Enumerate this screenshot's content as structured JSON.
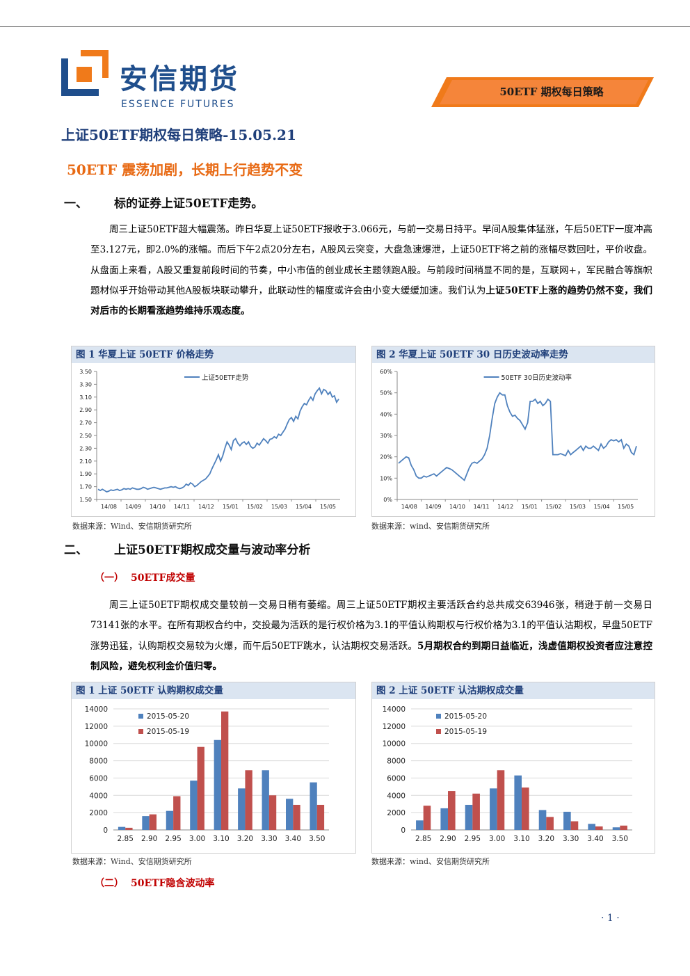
{
  "header": {
    "logo_cn": "安信期货",
    "logo_en": "ESSENCE FUTURES",
    "banner": "50ETF 期权每日策略",
    "colors": {
      "brand_blue": "#1f4e8c",
      "accent_orange": "#f07a1a",
      "headline_orange": "#e86a14",
      "subsection_red": "#c00000"
    }
  },
  "doc_title": "上证50ETF期权每日策略-15.05.21",
  "headline": "50ETF 震荡加剧，长期上行趋势不变",
  "section1": {
    "num": "一、",
    "title": "标的证券上证50ETF走势。"
  },
  "para1": {
    "text": "周三上证50ETF超大幅震荡。昨日华夏上证50ETF报收于3.066元，与前一交易日持平。早间A股集体猛涨，午后50ETF一度冲高至3.127元，即2.0%的涨幅。而后下午2点20分左右，A股风云突变，大盘急速爆泄，上证50ETF将之前的涨幅尽数回吐，平价收盘。从盘面上来看，A股又重复前段时间的节奏，中小市值的创业成长主题领跑A股。与前段时间稍显不同的是，互联网+，军民融合等旗帜题材似乎开始带动其他A股板块联动攀升，此联动性的幅度或许会由小变大缓缓加速。我们认为",
    "bold": "上证50ETF上涨的趋势仍然不变，我们对后市的长期看涨趋势维持乐观态度。"
  },
  "fig1": {
    "title": "图 1 华夏上证 50ETF 价格走势",
    "source": "数据来源：Wind、安信期货研究所"
  },
  "fig2": {
    "title": "图 2 华夏上证 50ETF 30 日历史波动率走势",
    "source": "数据来源：wind、安信期货研究所"
  },
  "section2": {
    "num": "二、",
    "title": "上证50ETF期权成交量与波动率分析"
  },
  "sub1": {
    "num": "（一）",
    "title": "50ETF成交量"
  },
  "para2": {
    "text": "周三上证50ETF期权成交量较前一交易日稍有萎缩。周三上证50ETF期权主要活跃合约总共成交63946张，稍逊于前一交易日73141张的水平。在所有期权合约中，交投最为活跃的是行权价格为3.1的平值认购期权与行权价格为3.1的平值认沽期权，早盘50ETF涨势迅猛，认购期权交易较为火爆，而午后50ETF跳水，认沽期权交易活跃。",
    "bold": "5月期权合约到期日益临近，浅虚值期权投资者应注意控制风险，避免权利金价值归零。"
  },
  "fig3": {
    "title": "图 1 上证 50ETF 认购期权成交量",
    "source": "数据来源：Wind、安信期货研究所"
  },
  "fig4": {
    "title": "图 2 上证 50ETF 认沽期权成交量",
    "source": "数据来源：wind、安信期货研究所"
  },
  "sub2": {
    "num": "（二）",
    "title": "50ETF隐含波动率"
  },
  "page_number": "· 1 ·",
  "chart_data": [
    {
      "type": "line",
      "legend": "上证50ETF走势",
      "x_tick_labels": [
        "14/08",
        "14/09",
        "14/10",
        "14/11",
        "14/12",
        "15/01",
        "15/02",
        "15/03",
        "15/04",
        "15/05"
      ],
      "y_tick_labels": [
        "1.50",
        "1.70",
        "1.90",
        "2.10",
        "2.30",
        "2.50",
        "2.70",
        "2.90",
        "3.10",
        "3.30",
        "3.50"
      ],
      "ylim": [
        1.5,
        3.5
      ],
      "color": "#4f81bd",
      "series": [
        {
          "values": [
            1.66,
            1.64,
            1.66,
            1.64,
            1.62,
            1.63,
            1.65,
            1.64,
            1.65,
            1.66,
            1.64,
            1.65,
            1.67,
            1.66,
            1.67,
            1.66,
            1.68,
            1.67,
            1.66,
            1.66,
            1.67,
            1.69,
            1.68,
            1.66,
            1.67,
            1.68,
            1.69,
            1.68,
            1.67,
            1.66,
            1.67,
            1.68,
            1.68,
            1.69,
            1.7,
            1.69,
            1.7,
            1.68,
            1.67,
            1.68,
            1.7,
            1.74,
            1.72,
            1.76,
            1.74,
            1.7,
            1.72,
            1.75,
            1.78,
            1.8,
            1.82,
            1.86,
            1.9,
            1.98,
            2.05,
            2.12,
            2.2,
            2.1,
            2.18,
            2.3,
            2.4,
            2.35,
            2.28,
            2.42,
            2.45,
            2.38,
            2.34,
            2.38,
            2.4,
            2.36,
            2.4,
            2.33,
            2.3,
            2.32,
            2.38,
            2.35,
            2.4,
            2.45,
            2.42,
            2.38,
            2.44,
            2.45,
            2.48,
            2.46,
            2.52,
            2.5,
            2.55,
            2.6,
            2.68,
            2.75,
            2.78,
            2.72,
            2.8,
            2.76,
            2.88,
            2.95,
            3.0,
            2.98,
            3.05,
            3.1,
            3.05,
            3.15,
            3.2,
            3.24,
            3.15,
            3.22,
            3.2,
            3.14,
            3.18,
            3.1,
            3.12,
            3.02,
            3.07
          ]
        }
      ]
    },
    {
      "type": "line",
      "legend": "50ETF 30日历史波动率",
      "x_tick_labels": [
        "14/08",
        "14/09",
        "14/10",
        "14/11",
        "14/12",
        "15/01",
        "15/02",
        "15/03",
        "15/04",
        "15/05"
      ],
      "y_tick_labels": [
        "0%",
        "10%",
        "20%",
        "30%",
        "40%",
        "50%",
        "60%"
      ],
      "ylim": [
        0,
        60
      ],
      "color": "#4f81bd",
      "series": [
        {
          "values": [
            17,
            18,
            19,
            20,
            19.5,
            16,
            14,
            11,
            10,
            10,
            11,
            10.5,
            11,
            11.5,
            12,
            11,
            12,
            13,
            14,
            15,
            14.5,
            14,
            13,
            12,
            11,
            10,
            9,
            12,
            15,
            17,
            17.5,
            17,
            18,
            19,
            21,
            24,
            30,
            38,
            45,
            48,
            50,
            49,
            49,
            44,
            41,
            39,
            39.5,
            38,
            37,
            35,
            33,
            36,
            46,
            46,
            47,
            45,
            46,
            44,
            45,
            47,
            46,
            21,
            21,
            21,
            21.5,
            21,
            20.5,
            23,
            21,
            22,
            23,
            24,
            25,
            23,
            25,
            24,
            24,
            25,
            24,
            23,
            26,
            24,
            25,
            27,
            28,
            27.5,
            28,
            27,
            28,
            24,
            26,
            25,
            22,
            21,
            25
          ]
        }
      ]
    },
    {
      "type": "bar",
      "categories": [
        "2.85",
        "2.90",
        "2.95",
        "3.00",
        "3.10",
        "3.20",
        "3.30",
        "3.40",
        "3.50"
      ],
      "y_tick_labels": [
        "0",
        "2000",
        "4000",
        "6000",
        "8000",
        "10000",
        "12000",
        "14000"
      ],
      "ylim": [
        0,
        14000
      ],
      "series": [
        {
          "name": "2015-05-20",
          "color": "#4f81bd",
          "values": [
            350,
            1600,
            2200,
            5700,
            10400,
            4800,
            6900,
            3600,
            5500
          ]
        },
        {
          "name": "2015-05-19",
          "color": "#c0504d",
          "values": [
            250,
            1800,
            3900,
            9600,
            13700,
            6900,
            4000,
            2900,
            2900
          ]
        }
      ]
    },
    {
      "type": "bar",
      "categories": [
        "2.85",
        "2.90",
        "2.95",
        "3.00",
        "3.10",
        "3.20",
        "3.30",
        "3.40",
        "3.50"
      ],
      "y_tick_labels": [
        "0",
        "2000",
        "4000",
        "6000",
        "8000",
        "10000",
        "12000",
        "14000"
      ],
      "ylim": [
        0,
        14000
      ],
      "series": [
        {
          "name": "2015-05-20",
          "color": "#4f81bd",
          "values": [
            1100,
            2500,
            2900,
            4800,
            6300,
            2300,
            2100,
            700,
            300
          ]
        },
        {
          "name": "2015-05-19",
          "color": "#c0504d",
          "values": [
            2800,
            4500,
            4200,
            6900,
            4900,
            1500,
            1000,
            400,
            500
          ]
        }
      ]
    }
  ]
}
